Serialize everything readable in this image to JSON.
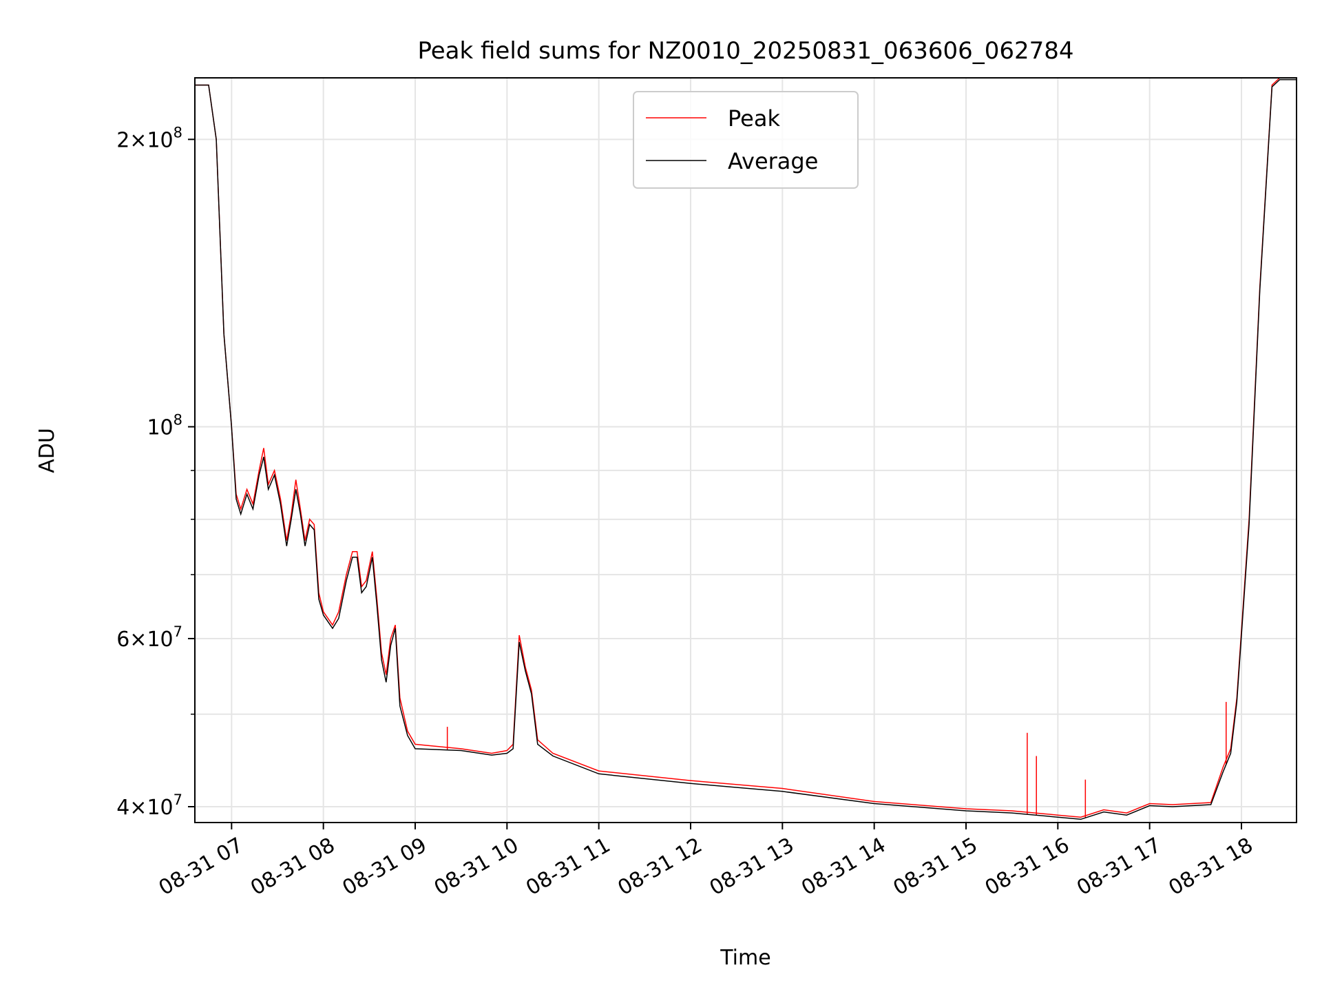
{
  "chart_data": {
    "type": "line",
    "title": "Peak field sums for NZ0010_20250831_063606_062784",
    "xlabel": "Time",
    "ylabel": "ADU",
    "y_scale": "log",
    "ylim": [
      38500000,
      232000000
    ],
    "xlim": [
      "2025-08-31 06:36",
      "2025-08-31 18:36"
    ],
    "grid": true,
    "legend_position": "upper center",
    "x_ticks": [
      {
        "t": "2025-08-31 07:00",
        "label": "08-31 07"
      },
      {
        "t": "2025-08-31 08:00",
        "label": "08-31 08"
      },
      {
        "t": "2025-08-31 09:00",
        "label": "08-31 09"
      },
      {
        "t": "2025-08-31 10:00",
        "label": "08-31 10"
      },
      {
        "t": "2025-08-31 11:00",
        "label": "08-31 11"
      },
      {
        "t": "2025-08-31 12:00",
        "label": "08-31 12"
      },
      {
        "t": "2025-08-31 13:00",
        "label": "08-31 13"
      },
      {
        "t": "2025-08-31 14:00",
        "label": "08-31 14"
      },
      {
        "t": "2025-08-31 15:00",
        "label": "08-31 15"
      },
      {
        "t": "2025-08-31 16:00",
        "label": "08-31 16"
      },
      {
        "t": "2025-08-31 17:00",
        "label": "08-31 17"
      },
      {
        "t": "2025-08-31 18:00",
        "label": "08-31 18"
      }
    ],
    "y_ticks_major": [
      {
        "value": 40000000,
        "mant": "4",
        "exp": "7"
      },
      {
        "value": 60000000,
        "mant": "6",
        "exp": "7"
      },
      {
        "value": 100000000,
        "mant": "",
        "exp": "8"
      },
      {
        "value": 200000000,
        "mant": "2",
        "exp": "8"
      }
    ],
    "y_ticks_minor": [
      50000000,
      70000000,
      80000000,
      90000000
    ],
    "series": [
      {
        "name": "Peak",
        "color": "#ff0000",
        "points": [
          [
            "2025-08-31 06:36",
            228000000
          ],
          [
            "2025-08-31 06:45",
            228000000
          ],
          [
            "2025-08-31 06:50",
            200000000
          ],
          [
            "2025-08-31 06:55",
            125000000
          ],
          [
            "2025-08-31 07:00",
            100000000
          ],
          [
            "2025-08-31 07:03",
            85000000
          ],
          [
            "2025-08-31 07:06",
            82000000
          ],
          [
            "2025-08-31 07:10",
            86000000
          ],
          [
            "2025-08-31 07:14",
            83000000
          ],
          [
            "2025-08-31 07:18",
            90000000
          ],
          [
            "2025-08-31 07:21",
            95000000
          ],
          [
            "2025-08-31 07:24",
            87000000
          ],
          [
            "2025-08-31 07:28",
            90000000
          ],
          [
            "2025-08-31 07:32",
            84000000
          ],
          [
            "2025-08-31 07:36",
            76000000
          ],
          [
            "2025-08-31 07:39",
            81000000
          ],
          [
            "2025-08-31 07:42",
            88000000
          ],
          [
            "2025-08-31 07:45",
            82000000
          ],
          [
            "2025-08-31 07:48",
            76000000
          ],
          [
            "2025-08-31 07:51",
            80000000
          ],
          [
            "2025-08-31 07:54",
            79000000
          ],
          [
            "2025-08-31 07:57",
            67000000
          ],
          [
            "2025-08-31 08:00",
            64000000
          ],
          [
            "2025-08-31 08:06",
            62000000
          ],
          [
            "2025-08-31 08:10",
            64000000
          ],
          [
            "2025-08-31 08:15",
            70000000
          ],
          [
            "2025-08-31 08:19",
            74000000
          ],
          [
            "2025-08-31 08:22",
            74000000
          ],
          [
            "2025-08-31 08:25",
            68000000
          ],
          [
            "2025-08-31 08:28",
            69000000
          ],
          [
            "2025-08-31 08:32",
            74000000
          ],
          [
            "2025-08-31 08:35",
            66000000
          ],
          [
            "2025-08-31 08:38",
            58000000
          ],
          [
            "2025-08-31 08:41",
            55000000
          ],
          [
            "2025-08-31 08:44",
            60000000
          ],
          [
            "2025-08-31 08:47",
            62000000
          ],
          [
            "2025-08-31 08:50",
            52000000
          ],
          [
            "2025-08-31 08:55",
            48000000
          ],
          [
            "2025-08-31 09:00",
            46500000
          ],
          [
            "2025-08-31 09:30",
            46000000
          ],
          [
            "2025-08-31 09:50",
            45500000
          ],
          [
            "2025-08-31 10:00",
            45800000
          ],
          [
            "2025-08-31 10:04",
            46500000
          ],
          [
            "2025-08-31 10:08",
            60500000
          ],
          [
            "2025-08-31 10:12",
            56000000
          ],
          [
            "2025-08-31 10:16",
            53000000
          ],
          [
            "2025-08-31 10:20",
            47000000
          ],
          [
            "2025-08-31 10:30",
            45500000
          ],
          [
            "2025-08-31 11:00",
            43600000
          ],
          [
            "2025-08-31 12:00",
            42600000
          ],
          [
            "2025-08-31 13:00",
            41800000
          ],
          [
            "2025-08-31 14:00",
            40500000
          ],
          [
            "2025-08-31 15:00",
            39800000
          ],
          [
            "2025-08-31 15:30",
            39600000
          ],
          [
            "2025-08-31 16:00",
            39200000
          ],
          [
            "2025-08-31 16:15",
            39000000
          ],
          [
            "2025-08-31 16:30",
            39700000
          ],
          [
            "2025-08-31 16:45",
            39400000
          ],
          [
            "2025-08-31 17:00",
            40300000
          ],
          [
            "2025-08-31 17:15",
            40200000
          ],
          [
            "2025-08-31 17:40",
            40400000
          ],
          [
            "2025-08-31 17:48",
            44000000
          ],
          [
            "2025-08-31 17:53",
            46000000
          ],
          [
            "2025-08-31 17:57",
            52000000
          ],
          [
            "2025-08-31 18:05",
            80000000
          ],
          [
            "2025-08-31 18:12",
            140000000
          ],
          [
            "2025-08-31 18:20",
            228000000
          ],
          [
            "2025-08-31 18:25",
            232000000
          ],
          [
            "2025-08-31 18:36",
            232000000
          ]
        ],
        "spikes": [
          [
            "2025-08-31 09:21",
            48500000
          ],
          [
            "2025-08-31 15:40",
            47800000
          ],
          [
            "2025-08-31 15:46",
            45200000
          ],
          [
            "2025-08-31 16:18",
            42700000
          ],
          [
            "2025-08-31 17:50",
            51500000
          ]
        ]
      },
      {
        "name": "Average",
        "color": "#000000",
        "points": [
          [
            "2025-08-31 06:36",
            228000000
          ],
          [
            "2025-08-31 06:45",
            228000000
          ],
          [
            "2025-08-31 06:50",
            200000000
          ],
          [
            "2025-08-31 06:55",
            125000000
          ],
          [
            "2025-08-31 07:00",
            100000000
          ],
          [
            "2025-08-31 07:03",
            84000000
          ],
          [
            "2025-08-31 07:06",
            81000000
          ],
          [
            "2025-08-31 07:10",
            85000000
          ],
          [
            "2025-08-31 07:14",
            82000000
          ],
          [
            "2025-08-31 07:18",
            89000000
          ],
          [
            "2025-08-31 07:21",
            93000000
          ],
          [
            "2025-08-31 07:24",
            86000000
          ],
          [
            "2025-08-31 07:28",
            89000000
          ],
          [
            "2025-08-31 07:32",
            83000000
          ],
          [
            "2025-08-31 07:36",
            75000000
          ],
          [
            "2025-08-31 07:39",
            80000000
          ],
          [
            "2025-08-31 07:42",
            86000000
          ],
          [
            "2025-08-31 07:45",
            81000000
          ],
          [
            "2025-08-31 07:48",
            75000000
          ],
          [
            "2025-08-31 07:51",
            79000000
          ],
          [
            "2025-08-31 07:54",
            78000000
          ],
          [
            "2025-08-31 07:57",
            66000000
          ],
          [
            "2025-08-31 08:00",
            63500000
          ],
          [
            "2025-08-31 08:06",
            61500000
          ],
          [
            "2025-08-31 08:10",
            63000000
          ],
          [
            "2025-08-31 08:15",
            69000000
          ],
          [
            "2025-08-31 08:19",
            73000000
          ],
          [
            "2025-08-31 08:22",
            73000000
          ],
          [
            "2025-08-31 08:25",
            67000000
          ],
          [
            "2025-08-31 08:28",
            68000000
          ],
          [
            "2025-08-31 08:32",
            73000000
          ],
          [
            "2025-08-31 08:35",
            65000000
          ],
          [
            "2025-08-31 08:38",
            57000000
          ],
          [
            "2025-08-31 08:41",
            54000000
          ],
          [
            "2025-08-31 08:44",
            59000000
          ],
          [
            "2025-08-31 08:47",
            61500000
          ],
          [
            "2025-08-31 08:50",
            51000000
          ],
          [
            "2025-08-31 08:55",
            47500000
          ],
          [
            "2025-08-31 09:00",
            46000000
          ],
          [
            "2025-08-31 09:30",
            45800000
          ],
          [
            "2025-08-31 09:50",
            45300000
          ],
          [
            "2025-08-31 10:00",
            45500000
          ],
          [
            "2025-08-31 10:04",
            46000000
          ],
          [
            "2025-08-31 10:08",
            59500000
          ],
          [
            "2025-08-31 10:12",
            55500000
          ],
          [
            "2025-08-31 10:16",
            52500000
          ],
          [
            "2025-08-31 10:20",
            46500000
          ],
          [
            "2025-08-31 10:30",
            45200000
          ],
          [
            "2025-08-31 11:00",
            43300000
          ],
          [
            "2025-08-31 12:00",
            42300000
          ],
          [
            "2025-08-31 13:00",
            41500000
          ],
          [
            "2025-08-31 14:00",
            40300000
          ],
          [
            "2025-08-31 15:00",
            39600000
          ],
          [
            "2025-08-31 15:30",
            39400000
          ],
          [
            "2025-08-31 16:00",
            39000000
          ],
          [
            "2025-08-31 16:15",
            38800000
          ],
          [
            "2025-08-31 16:30",
            39500000
          ],
          [
            "2025-08-31 16:45",
            39200000
          ],
          [
            "2025-08-31 17:00",
            40100000
          ],
          [
            "2025-08-31 17:15",
            40000000
          ],
          [
            "2025-08-31 17:40",
            40200000
          ],
          [
            "2025-08-31 17:48",
            43500000
          ],
          [
            "2025-08-31 17:53",
            45500000
          ],
          [
            "2025-08-31 17:57",
            51500000
          ],
          [
            "2025-08-31 18:05",
            79000000
          ],
          [
            "2025-08-31 18:12",
            139000000
          ],
          [
            "2025-08-31 18:20",
            227000000
          ],
          [
            "2025-08-31 18:25",
            231000000
          ],
          [
            "2025-08-31 18:36",
            231000000
          ]
        ]
      }
    ]
  }
}
